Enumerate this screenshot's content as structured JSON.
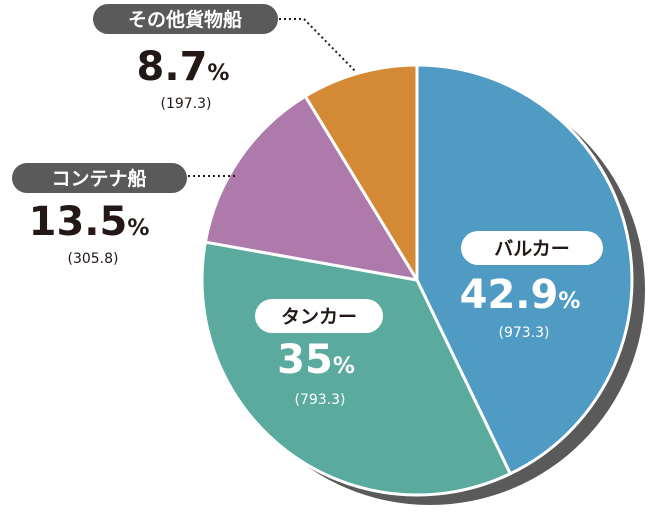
{
  "chart_data": {
    "type": "pie",
    "unit": "%",
    "slices": [
      {
        "name": "バルカー",
        "percent": 42.9,
        "value_label": "(973.3)",
        "value": 973.3,
        "color": "#4f9bc4"
      },
      {
        "name": "タンカー",
        "percent": 35.0,
        "value_label": "(793.3)",
        "value": 793.3,
        "color": "#5aaa9e"
      },
      {
        "name": "コンテナ船",
        "percent": 13.5,
        "value_label": "(305.8)",
        "value": 305.8,
        "color": "#ad7aab"
      },
      {
        "name": "その他貨物船",
        "percent": 8.7,
        "value_label": "(197.3)",
        "value": 197.3,
        "color": "#d48a35"
      }
    ],
    "colors": {
      "shadow": "#5a5a5a",
      "separator": "#ffffff",
      "callout_pill": "#5a5a5a",
      "outside_text": "#231815",
      "inside_text": "#ffffff"
    }
  }
}
